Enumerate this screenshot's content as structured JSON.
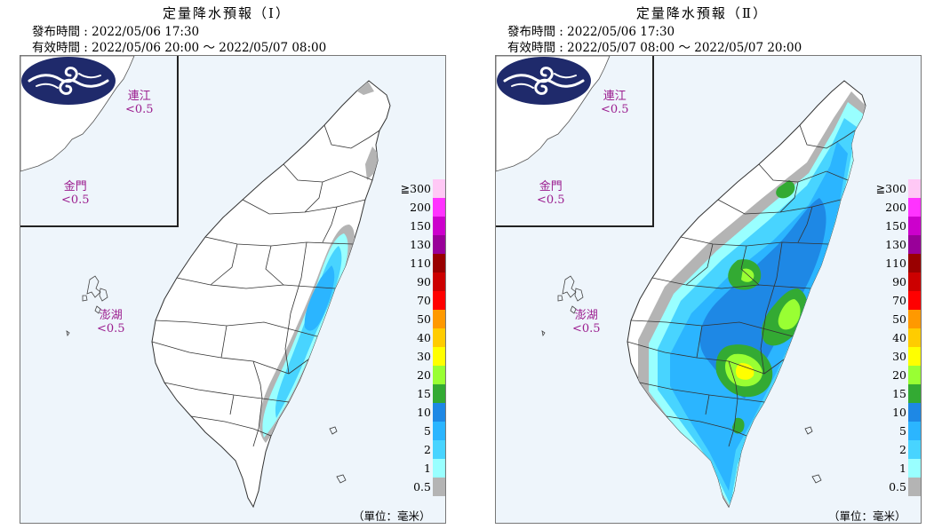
{
  "panels": [
    {
      "title": "定量降水預報（Ⅰ）",
      "issue_label": "發布時間",
      "issue_time": "2022/05/06 17:30",
      "valid_label": "有效時間",
      "valid_time": "2022/05/06 20:00 ～ 2022/05/07 08:00",
      "places": {
        "matsu": {
          "name": "連江",
          "value": "<0.5"
        },
        "kinmen": {
          "name": "金門",
          "value": "<0.5"
        },
        "penghu": {
          "name": "澎湖",
          "value": "<0.5"
        }
      },
      "unit": "（單位：毫米）"
    },
    {
      "title": "定量降水預報（Ⅱ）",
      "issue_label": "發布時間",
      "issue_time": "2022/05/06 17:30",
      "valid_label": "有效時間",
      "valid_time": "2022/05/07 08:00 ～ 2022/05/07 20:00",
      "places": {
        "matsu": {
          "name": "連江",
          "value": "<0.5"
        },
        "kinmen": {
          "name": "金門",
          "value": "<0.5"
        },
        "penghu": {
          "name": "澎湖",
          "value": "<0.5"
        }
      },
      "unit": "（單位：毫米）"
    }
  ],
  "legend": [
    {
      "label": "≧300",
      "color": "#ffc8f5"
    },
    {
      "label": "200",
      "color": "#ff33ff"
    },
    {
      "label": "150",
      "color": "#cc00cc"
    },
    {
      "label": "130",
      "color": "#990099"
    },
    {
      "label": "110",
      "color": "#990000"
    },
    {
      "label": "90",
      "color": "#cc0000"
    },
    {
      "label": "70",
      "color": "#ff0000"
    },
    {
      "label": "50",
      "color": "#ff9900"
    },
    {
      "label": "40",
      "color": "#ffcc00"
    },
    {
      "label": "30",
      "color": "#ffff00"
    },
    {
      "label": "20",
      "color": "#99ff33"
    },
    {
      "label": "15",
      "color": "#33aa33"
    },
    {
      "label": "10",
      "color": "#1e88e5"
    },
    {
      "label": "5",
      "color": "#2bb5ff"
    },
    {
      "label": "2",
      "color": "#48d4ff"
    },
    {
      "label": "1",
      "color": "#99ffff"
    },
    {
      "label": "0.5",
      "color": "#b4b4b4"
    }
  ]
}
